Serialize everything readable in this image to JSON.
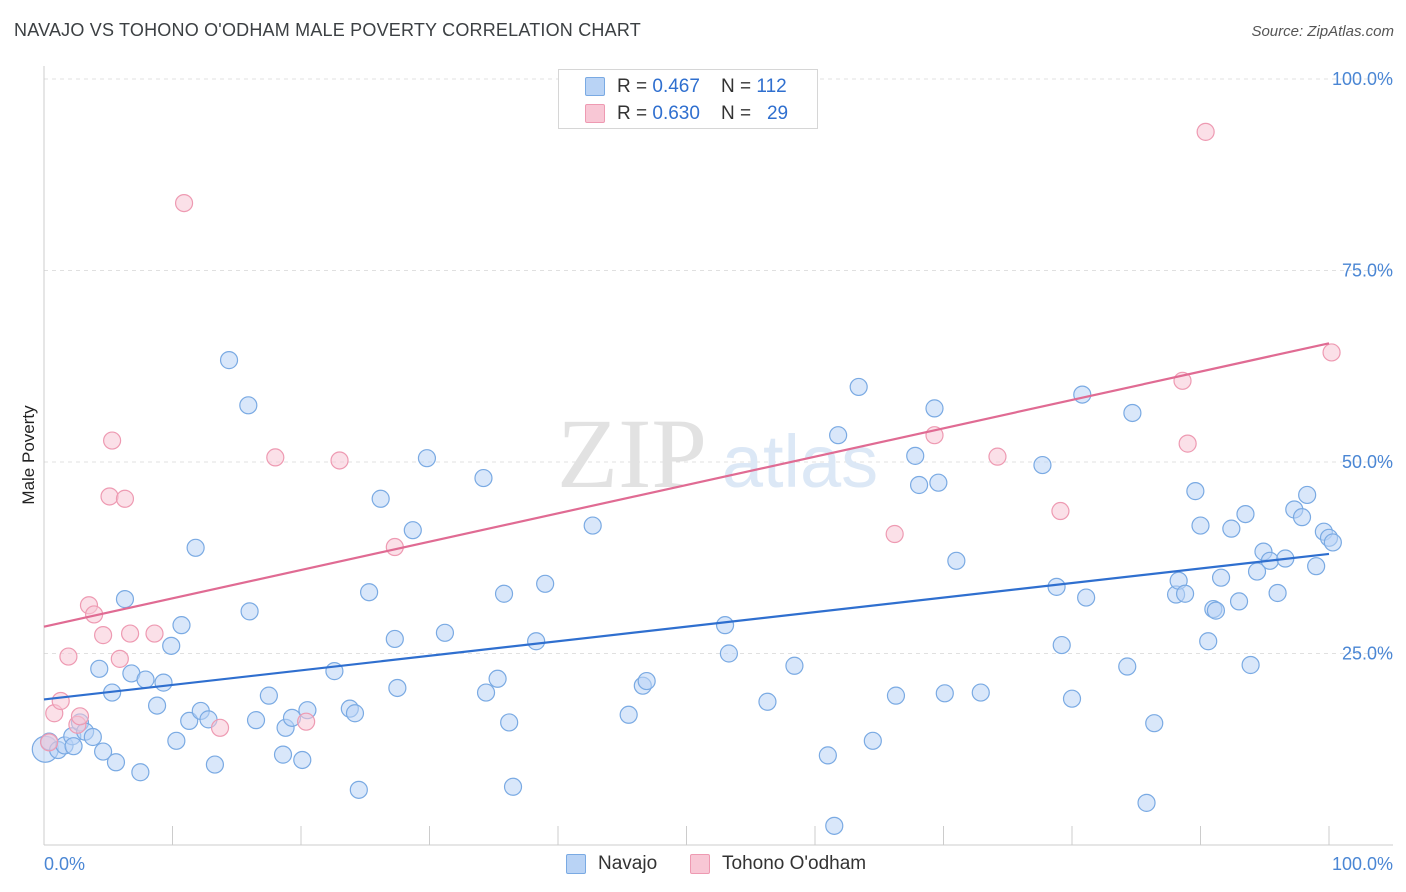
{
  "title": "NAVAJO VS TOHONO O'ODHAM MALE POVERTY CORRELATION CHART",
  "source": "Source: ZipAtlas.com",
  "watermark": {
    "zip": "ZIP",
    "atlas": "atlas"
  },
  "legend": {
    "navajo": {
      "r_label": "R = ",
      "r_value": "0.467",
      "n_label": "N = ",
      "n_value": "112"
    },
    "tohono": {
      "r_label": "R = ",
      "r_value": "0.630",
      "n_label": "N = ",
      "n_value": "29"
    }
  },
  "bottom_legend": {
    "navajo": "Navajo",
    "tohono": "Tohono O'odham"
  },
  "colors": {
    "navajo_fill": "#b9d3f5",
    "navajo_stroke": "#7aaae3",
    "navajo_line": "#2f6fcf",
    "tohono_fill": "#f8c7d5",
    "tohono_stroke": "#ee9ab2",
    "tohono_line": "#e06b93",
    "tick_text": "#4a86d4",
    "grid": "#e0e0e0"
  },
  "chart_data": {
    "type": "scatter",
    "xlabel": "",
    "ylabel": "Male Poverty",
    "xlim": [
      0,
      100
    ],
    "ylim": [
      0,
      100
    ],
    "x_tick_labels": {
      "min": "0.0%",
      "max": "100.0%"
    },
    "y_ticks": [
      {
        "value": 25,
        "label": "25.0%"
      },
      {
        "value": 50,
        "label": "50.0%"
      },
      {
        "value": 75,
        "label": "75.0%"
      },
      {
        "value": 100,
        "label": "100.0%"
      }
    ],
    "grid": true,
    "series": [
      {
        "name": "Navajo",
        "R": 0.467,
        "N": 112,
        "trend": {
          "x": [
            0,
            100
          ],
          "y": [
            19.0,
            38.0
          ]
        },
        "points": [
          [
            0.1,
            12.5
          ],
          [
            0.4,
            13.5
          ],
          [
            1.1,
            12.4
          ],
          [
            1.6,
            13.0
          ],
          [
            2.2,
            14.2
          ],
          [
            2.3,
            12.9
          ],
          [
            2.8,
            16.0
          ],
          [
            3.2,
            14.8
          ],
          [
            3.8,
            14.1
          ],
          [
            4.3,
            23.0
          ],
          [
            4.6,
            12.2
          ],
          [
            5.3,
            19.9
          ],
          [
            5.6,
            10.8
          ],
          [
            6.3,
            32.1
          ],
          [
            6.8,
            22.4
          ],
          [
            7.5,
            9.5
          ],
          [
            7.9,
            21.6
          ],
          [
            8.8,
            18.2
          ],
          [
            9.3,
            21.2
          ],
          [
            9.9,
            26.0
          ],
          [
            10.3,
            13.6
          ],
          [
            10.7,
            28.7
          ],
          [
            11.3,
            16.2
          ],
          [
            11.8,
            38.8
          ],
          [
            12.2,
            17.5
          ],
          [
            12.8,
            16.4
          ],
          [
            13.3,
            10.5
          ],
          [
            14.4,
            63.3
          ],
          [
            15.9,
            57.4
          ],
          [
            16.0,
            30.5
          ],
          [
            16.5,
            16.3
          ],
          [
            17.5,
            19.5
          ],
          [
            18.6,
            11.8
          ],
          [
            18.8,
            15.3
          ],
          [
            19.3,
            16.6
          ],
          [
            20.1,
            11.1
          ],
          [
            20.5,
            17.6
          ],
          [
            22.6,
            22.7
          ],
          [
            23.8,
            17.8
          ],
          [
            24.2,
            17.2
          ],
          [
            24.5,
            7.2
          ],
          [
            25.3,
            33.0
          ],
          [
            26.2,
            45.2
          ],
          [
            27.3,
            26.9
          ],
          [
            27.5,
            20.5
          ],
          [
            28.7,
            41.1
          ],
          [
            29.8,
            50.5
          ],
          [
            31.2,
            27.7
          ],
          [
            34.2,
            47.9
          ],
          [
            34.4,
            19.9
          ],
          [
            35.3,
            21.7
          ],
          [
            35.8,
            32.8
          ],
          [
            36.2,
            16.0
          ],
          [
            36.5,
            7.6
          ],
          [
            38.3,
            26.6
          ],
          [
            39.0,
            34.1
          ],
          [
            42.7,
            41.7
          ],
          [
            45.5,
            17.0
          ],
          [
            46.6,
            20.8
          ],
          [
            46.9,
            21.4
          ],
          [
            53.0,
            28.7
          ],
          [
            53.3,
            25.0
          ],
          [
            56.3,
            18.7
          ],
          [
            58.4,
            23.4
          ],
          [
            61.0,
            11.7
          ],
          [
            61.5,
            2.5
          ],
          [
            61.8,
            53.5
          ],
          [
            63.4,
            59.8
          ],
          [
            64.5,
            13.6
          ],
          [
            66.3,
            19.5
          ],
          [
            67.8,
            50.8
          ],
          [
            68.1,
            47.0
          ],
          [
            69.3,
            57.0
          ],
          [
            69.6,
            47.3
          ],
          [
            70.1,
            19.8
          ],
          [
            71.0,
            37.1
          ],
          [
            72.9,
            19.9
          ],
          [
            77.7,
            49.6
          ],
          [
            78.8,
            33.7
          ],
          [
            79.2,
            26.1
          ],
          [
            80.0,
            19.1
          ],
          [
            80.8,
            58.8
          ],
          [
            81.1,
            32.3
          ],
          [
            84.3,
            23.3
          ],
          [
            84.7,
            56.4
          ],
          [
            85.8,
            5.5
          ],
          [
            86.4,
            15.9
          ],
          [
            88.1,
            32.7
          ],
          [
            88.3,
            34.5
          ],
          [
            88.8,
            32.8
          ],
          [
            89.6,
            46.2
          ],
          [
            90.0,
            41.7
          ],
          [
            90.6,
            26.6
          ],
          [
            91.0,
            30.8
          ],
          [
            91.2,
            30.6
          ],
          [
            91.6,
            34.9
          ],
          [
            92.4,
            41.3
          ],
          [
            93.0,
            31.8
          ],
          [
            93.5,
            43.2
          ],
          [
            93.9,
            23.5
          ],
          [
            94.4,
            35.7
          ],
          [
            94.9,
            38.3
          ],
          [
            95.4,
            37.1
          ],
          [
            96.0,
            32.9
          ],
          [
            96.6,
            37.4
          ],
          [
            97.3,
            43.8
          ],
          [
            97.9,
            42.8
          ],
          [
            98.3,
            45.7
          ],
          [
            99.0,
            36.4
          ],
          [
            99.6,
            40.9
          ],
          [
            100.0,
            40.1
          ],
          [
            100.3,
            39.5
          ]
        ]
      },
      {
        "name": "Tohono O'odham",
        "R": 0.63,
        "N": 29,
        "trend": {
          "x": [
            0,
            100
          ],
          "y": [
            28.5,
            65.5
          ]
        },
        "points": [
          [
            0.4,
            13.4
          ],
          [
            0.8,
            17.2
          ],
          [
            1.3,
            18.8
          ],
          [
            1.9,
            24.6
          ],
          [
            2.6,
            15.7
          ],
          [
            2.8,
            16.8
          ],
          [
            3.5,
            31.3
          ],
          [
            3.9,
            30.1
          ],
          [
            4.6,
            27.4
          ],
          [
            5.1,
            45.5
          ],
          [
            5.3,
            52.8
          ],
          [
            5.9,
            24.3
          ],
          [
            6.3,
            45.2
          ],
          [
            6.7,
            27.6
          ],
          [
            8.6,
            27.6
          ],
          [
            10.9,
            83.8
          ],
          [
            13.7,
            15.3
          ],
          [
            18.0,
            50.6
          ],
          [
            20.4,
            16.1
          ],
          [
            23.0,
            50.2
          ],
          [
            27.3,
            38.9
          ],
          [
            66.2,
            40.6
          ],
          [
            69.3,
            53.5
          ],
          [
            74.2,
            50.7
          ],
          [
            79.1,
            43.6
          ],
          [
            88.6,
            60.6
          ],
          [
            89.0,
            52.4
          ],
          [
            90.4,
            93.1
          ],
          [
            100.2,
            64.3
          ]
        ]
      }
    ]
  }
}
